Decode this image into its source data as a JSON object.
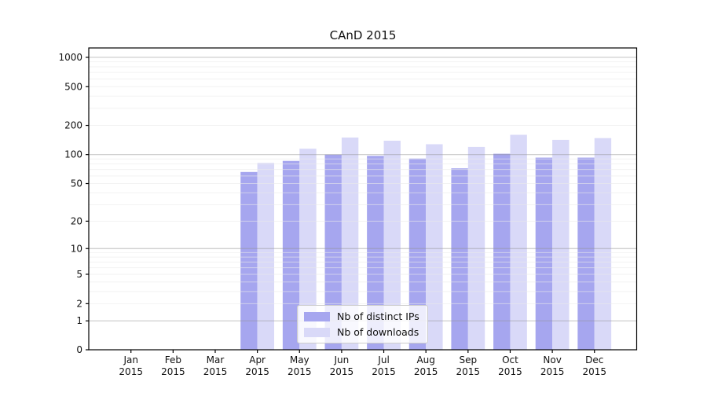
{
  "title": "CAnD 2015",
  "chart_data": {
    "type": "bar",
    "title": "CAnD 2015",
    "y_scale": "log1p",
    "grid": true,
    "legend_position": "lower center",
    "categories": [
      "Jan 2015",
      "Feb 2015",
      "Mar 2015",
      "Apr 2015",
      "May 2015",
      "Jun 2015",
      "Jul 2015",
      "Aug 2015",
      "Sep 2015",
      "Oct 2015",
      "Nov 2015",
      "Dec 2015"
    ],
    "x_tick_months": [
      "Jan",
      "Feb",
      "Mar",
      "Apr",
      "May",
      "Jun",
      "Jul",
      "Aug",
      "Sep",
      "Oct",
      "Nov",
      "Dec"
    ],
    "x_tick_year": "2015",
    "series": [
      {
        "name": "Nb of distinct IPs",
        "color": "#a6a6ef",
        "values": [
          0,
          0,
          0,
          66,
          86,
          100,
          97,
          91,
          72,
          102,
          93,
          93
        ]
      },
      {
        "name": "Nb of downloads",
        "color": "#d9d9f8",
        "values": [
          0,
          0,
          0,
          82,
          115,
          150,
          139,
          128,
          120,
          160,
          142,
          148
        ]
      }
    ],
    "y_ticks": [
      0,
      1,
      2,
      5,
      10,
      20,
      50,
      100,
      200,
      500,
      1000
    ],
    "ylim": [
      0,
      1250
    ]
  },
  "legend": {
    "items": [
      {
        "label": "Nb of distinct IPs",
        "color": "#a6a6ef"
      },
      {
        "label": "Nb of downloads",
        "color": "#d9d9f8"
      }
    ]
  },
  "colors": {
    "spine": "#000000",
    "major_grid": "rgba(150,150,150,0.5)",
    "minor_grid": "rgba(233,233,233,0.6)",
    "text": "#111111"
  }
}
